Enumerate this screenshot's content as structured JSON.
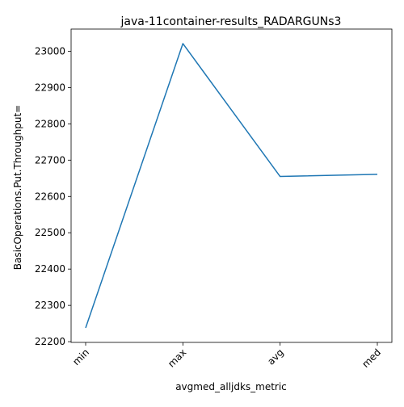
{
  "chart_data": {
    "type": "line",
    "title": "java-11container-results_RADARGUNs3",
    "xlabel": "avgmed_alljdks_metric",
    "ylabel": "BasicOperations.Put.Throughput=",
    "categories": [
      "min",
      "max",
      "avg",
      "med"
    ],
    "series": [
      {
        "values": [
          22238,
          23021,
          22655,
          22661
        ]
      }
    ],
    "ylim": [
      22198,
      23061
    ],
    "yticks": [
      22200,
      22300,
      22400,
      22500,
      22600,
      22700,
      22800,
      22900,
      23000
    ],
    "grid": false,
    "legend": "none",
    "line_color": "#1f77b4"
  }
}
